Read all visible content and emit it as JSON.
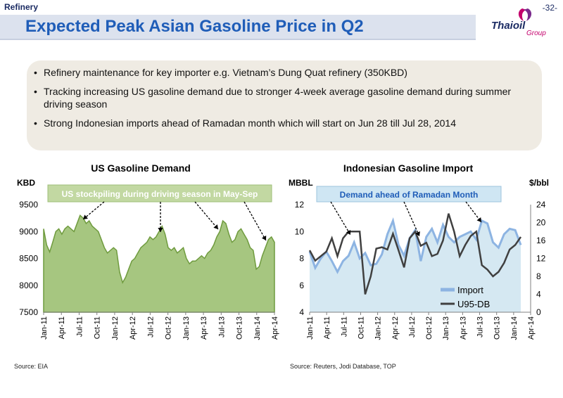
{
  "header": {
    "section": "Refinery",
    "page": "-32-",
    "title": "Expected Peak Asian Gasoline Price in Q2"
  },
  "logo": {
    "text": "Thaioil",
    "subtext": "Group"
  },
  "bullets": [
    "Refinery maintenance for key importer e.g. Vietnam’s Dung Quat refinery (350KBD)",
    "Tracking increasing US gasoline demand due to stronger 4-week average gasoline demand during summer driving season",
    "Strong Indonesian imports ahead of Ramadan month which will start on Jun 28 till Jul 28, 2014"
  ],
  "sources": {
    "left": "Source: EIA",
    "right": "Source: Reuters, Jodi Database, TOP"
  },
  "colors": {
    "us_fill": "#a6c680",
    "us_line": "#6f9b3e",
    "indo_fill": "#d5e8f2",
    "import_line": "#8db4e2",
    "u95_line": "#404040",
    "title_blue": "#1f5db8"
  },
  "chart_data": [
    {
      "type": "area",
      "title": "US Gasoline Demand",
      "ylabel": "KBD",
      "ylim": [
        7500,
        9500
      ],
      "yticks": [
        "7500",
        "8000",
        "8500",
        "9000",
        "9500"
      ],
      "xticks": [
        "Jan-11",
        "Apr-11",
        "Jul-11",
        "Oct-11",
        "Jan-12",
        "Apr-12",
        "Jul-12",
        "Oct-12",
        "Jan-13",
        "Apr-13",
        "Jul-13",
        "Oct-13",
        "Jan-14",
        "Apr-14"
      ],
      "annotation": "US stockpiling during driving season in May-Sep",
      "series": [
        {
          "values": [
            9050,
            8750,
            8620,
            8800,
            9000,
            9050,
            8950,
            9050,
            9100,
            9050,
            9000,
            9150,
            9300,
            9250,
            9150,
            9200,
            9100,
            9050,
            9000,
            8850,
            8700,
            8600,
            8650,
            8700,
            8650,
            8250,
            8050,
            8150,
            8300,
            8450,
            8500,
            8600,
            8700,
            8750,
            8800,
            8900,
            8850,
            8900,
            9000,
            9100,
            8950,
            8700,
            8650,
            8700,
            8600,
            8650,
            8700,
            8500,
            8400,
            8450,
            8450,
            8500,
            8550,
            8500,
            8600,
            8650,
            8750,
            8900,
            9000,
            9200,
            9150,
            8950,
            8800,
            8850,
            9000,
            9050,
            8950,
            8850,
            8700,
            8650,
            8300,
            8350,
            8550,
            8700,
            8850,
            8900,
            8800
          ]
        }
      ]
    },
    {
      "type": "line",
      "title": "Indonesian Gasoline Import",
      "ylabel": "MBBL",
      "ylabel_right": "$/bbl",
      "ylim": [
        4,
        12
      ],
      "ylim_right": [
        0,
        24
      ],
      "yticks": [
        "4",
        "6",
        "8",
        "10",
        "12"
      ],
      "yticks_right": [
        "0",
        "4",
        "8",
        "12",
        "16",
        "20",
        "24"
      ],
      "xticks": [
        "Jan-11",
        "Apr-11",
        "Jul-11",
        "Oct-11",
        "Jan-12",
        "Apr-12",
        "Jul-12",
        "Oct-12",
        "Jan-13",
        "Apr-13",
        "Jul-13",
        "Oct-13",
        "Jan-14",
        "Apr-14"
      ],
      "annotation": "Demand ahead of Ramadan Month",
      "legend_position": "bottom-right",
      "series": [
        {
          "name": "Import",
          "axis": "left",
          "values": [
            8.5,
            7.3,
            8.0,
            8.5,
            7.8,
            7.0,
            7.8,
            8.2,
            9.2,
            8.0,
            8.4,
            7.5,
            7.6,
            8.3,
            9.8,
            10.8,
            9.0,
            8.2,
            9.5,
            10.1,
            7.8,
            9.6,
            10.2,
            9.2,
            10.5,
            9.6,
            9.2,
            9.6,
            9.8,
            10.0,
            9.4,
            10.8,
            10.6,
            9.2,
            8.8,
            9.8,
            10.2,
            10.1,
            9.0
          ]
        },
        {
          "name": "U95-DB",
          "axis": "right",
          "values": [
            13.8,
            11.5,
            12.5,
            13.5,
            16.5,
            12.5,
            16.5,
            18.0,
            18.0,
            18.0,
            4.0,
            8.0,
            14.2,
            14.5,
            14.0,
            17.5,
            13.8,
            10.0,
            16.5,
            18.0,
            14.8,
            15.5,
            12.5,
            13.0,
            16.0,
            22.0,
            18.0,
            12.5,
            15.0,
            17.0,
            18.0,
            10.5,
            9.5,
            8.0,
            9.0,
            11.0,
            14.0,
            15.0,
            16.8
          ]
        }
      ]
    }
  ]
}
